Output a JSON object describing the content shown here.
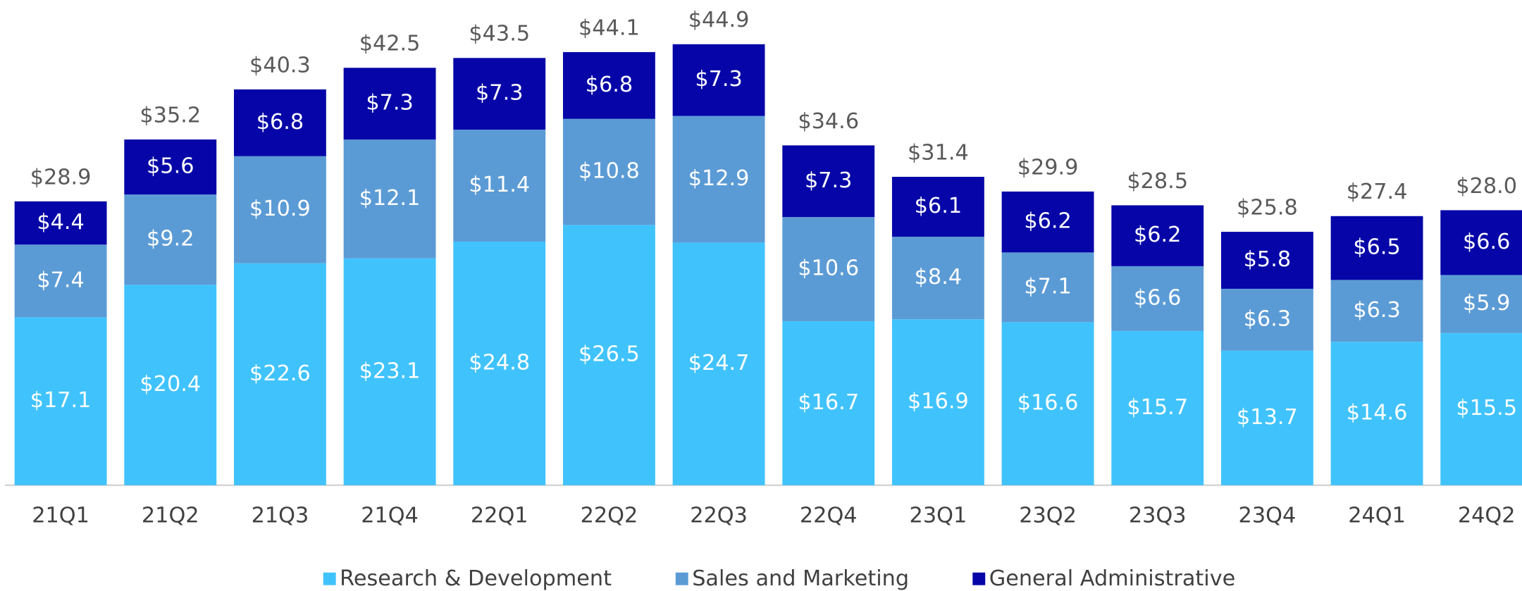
{
  "chart_data": {
    "type": "stacked_bar",
    "categories": [
      "21Q1",
      "21Q2",
      "21Q3",
      "21Q4",
      "22Q1",
      "22Q2",
      "22Q3",
      "22Q4",
      "23Q1",
      "23Q2",
      "23Q3",
      "23Q4",
      "24Q1",
      "24Q2"
    ],
    "series": [
      {
        "name": "Research & Development",
        "color": "#40c3fd",
        "values": [
          17.1,
          20.4,
          22.6,
          23.1,
          24.8,
          26.5,
          24.7,
          16.7,
          16.9,
          16.6,
          15.7,
          13.7,
          14.6,
          15.5
        ],
        "value_labels": [
          "$17.1",
          "$20.4",
          "$22.6",
          "$23.1",
          "$24.8",
          "$26.5",
          "$24.7",
          "$16.7",
          "$16.9",
          "$16.6",
          "$15.7",
          "$13.7",
          "$14.6",
          "$15.5"
        ]
      },
      {
        "name": "Sales and Marketing",
        "color": "#5b9bd5",
        "values": [
          7.4,
          9.2,
          10.9,
          12.1,
          11.4,
          10.8,
          12.9,
          10.6,
          8.4,
          7.1,
          6.6,
          6.3,
          6.3,
          5.9
        ],
        "value_labels": [
          "$7.4",
          "$9.2",
          "$10.9",
          "$12.1",
          "$11.4",
          "$10.8",
          "$12.9",
          "$10.6",
          "$8.4",
          "$7.1",
          "$6.6",
          "$6.3",
          "$6.3",
          "$5.9"
        ]
      },
      {
        "name": "General Administrative",
        "color": "#0606a8",
        "values": [
          4.4,
          5.6,
          6.8,
          7.3,
          7.3,
          6.8,
          7.3,
          7.3,
          6.1,
          6.2,
          6.2,
          5.8,
          6.5,
          6.6
        ],
        "value_labels": [
          "$4.4",
          "$5.6",
          "$6.8",
          "$7.3",
          "$7.3",
          "$6.8",
          "$7.3",
          "$7.3",
          "$6.1",
          "$6.2",
          "$6.2",
          "$5.8",
          "$6.5",
          "$6.6"
        ]
      }
    ],
    "totals": {
      "values": [
        28.9,
        35.2,
        40.3,
        42.5,
        43.5,
        44.1,
        44.9,
        34.6,
        31.4,
        29.9,
        28.5,
        25.8,
        27.4,
        28.0
      ],
      "value_labels": [
        "$28.9",
        "$35.2",
        "$40.3",
        "$42.5",
        "$43.5",
        "$44.1",
        "$44.9",
        "$34.6",
        "$31.4",
        "$29.9",
        "$28.5",
        "$25.8",
        "$27.4",
        "$28.0"
      ]
    },
    "ylim": [
      0,
      49.4
    ],
    "legend": "bottom"
  }
}
